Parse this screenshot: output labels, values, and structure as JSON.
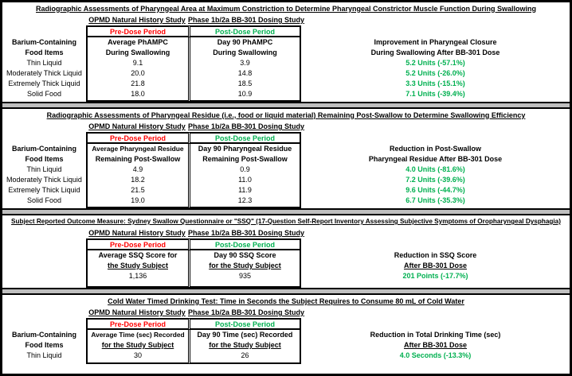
{
  "colors": {
    "pre_dose_red": "#FF0000",
    "post_dose_green": "#00B050",
    "separator_gray": "#BFBFBF"
  },
  "sections": [
    {
      "title": "Radiographic Assessments of Pharyngeal Area at Maximum Constriction to Determine Pharyngeal Constrictor Muscle Function During Swallowing",
      "study_pre": "OPMD Natural History Study",
      "study_post": "Phase 1b/2a BB-301 Dosing Study",
      "period_pre": "Pre-Dose Period",
      "period_post": "Post-Dose Period",
      "left_header": [
        "Barium-Containing",
        "Food Items"
      ],
      "pre_header": [
        "Average PhAMPC",
        "During Swallowing"
      ],
      "post_header": [
        "Day 90 PhAMPC",
        "During Swallowing"
      ],
      "result_header": [
        "Improvement in Pharyngeal Closure",
        "During Swallowing After BB-301 Dose"
      ],
      "rows": [
        {
          "label": "Thin Liquid",
          "pre": "9.1",
          "post": "3.9",
          "result": "5.2 Units (-57.1%)"
        },
        {
          "label": "Moderately Thick Liquid",
          "pre": "20.0",
          "post": "14.8",
          "result": "5.2 Units (-26.0%)"
        },
        {
          "label": "Extremely Thick Liquid",
          "pre": "21.8",
          "post": "18.5",
          "result": "3.3 Units (-15.1%)"
        },
        {
          "label": "Solid Food",
          "pre": "18.0",
          "post": "10.9",
          "result": "7.1 Units (-39.4%)"
        }
      ]
    },
    {
      "title": "Radiographic Assessments of Pharyngeal Residue (i.e., food or liquid material) Remaining Post-Swallow to Determine Swallowing Efficiency",
      "study_pre": "OPMD Natural History Study",
      "study_post": "Phase 1b/2a BB-301 Dosing Study",
      "period_pre": "Pre-Dose Period",
      "period_post": "Post-Dose Period",
      "left_header": [
        "Barium-Containing",
        "Food Items"
      ],
      "pre_header": [
        "Average Pharyngeal Residue",
        "Remaining Post-Swallow"
      ],
      "post_header": [
        "Day 90 Pharyngeal Residue",
        "Remaining Post-Swallow"
      ],
      "result_header": [
        "Reduction in Post-Swallow",
        "Pharyngeal Residue After BB-301 Dose"
      ],
      "rows": [
        {
          "label": "Thin Liquid",
          "pre": "4.9",
          "post": "0.9",
          "result": "4.0 Units (-81.6%)"
        },
        {
          "label": "Moderately Thick Liquid",
          "pre": "18.2",
          "post": "11.0",
          "result": "7.2 Units (-39.6%)"
        },
        {
          "label": "Extremely Thick Liquid",
          "pre": "21.5",
          "post": "11.9",
          "result": "9.6 Units (-44.7%)"
        },
        {
          "label": "Solid Food",
          "pre": "19.0",
          "post": "12.3",
          "result": "6.7 Units (-35.3%)"
        }
      ]
    },
    {
      "title": "Subject Reported Outcome Measure: Sydney Swallow Questionnaire or \"SSQ\" (17-Question Self-Report Inventory Assessing Subjective Symptoms of Oropharyngeal Dysphagia)",
      "study_pre": "OPMD Natural History Study",
      "study_post": "Phase 1b/2a BB-301 Dosing Study",
      "period_pre": "Pre-Dose Period",
      "period_post": "Post-Dose Period",
      "left_header": [
        "",
        ""
      ],
      "pre_header": [
        "Average SSQ Score for",
        "the Study Subject"
      ],
      "post_header": [
        "Day 90 SSQ Score",
        "for the Study Subject"
      ],
      "result_header": [
        "Reduction in SSQ Score",
        "After BB-301 Dose"
      ],
      "rows": [
        {
          "label": "",
          "pre": "1,136",
          "post": "935",
          "result": "201 Points (-17.7%)"
        }
      ]
    },
    {
      "title": "Cold Water Timed Drinking Test: Time in Seconds the Subject Requires to Consume 80 mL of Cold Water",
      "study_pre": "OPMD Natural History Study",
      "study_post": "Phase 1b/2a BB-301 Dosing Study",
      "period_pre": "Pre-Dose Period",
      "period_post": "Post-Dose Period",
      "left_header": [
        "Barium-Containing",
        "Food Items"
      ],
      "pre_header": [
        "Average Time (sec) Recorded",
        "for the Study Subject"
      ],
      "post_header": [
        "Day 90 Time (sec) Recorded",
        "for the Study Subject"
      ],
      "result_header": [
        "Reduction in Total Drinking Time (sec)",
        "After BB-301 Dose"
      ],
      "rows": [
        {
          "label": "Thin Liquid",
          "pre": "30",
          "post": "26",
          "result": "4.0 Seconds (-13.3%)"
        }
      ]
    }
  ]
}
